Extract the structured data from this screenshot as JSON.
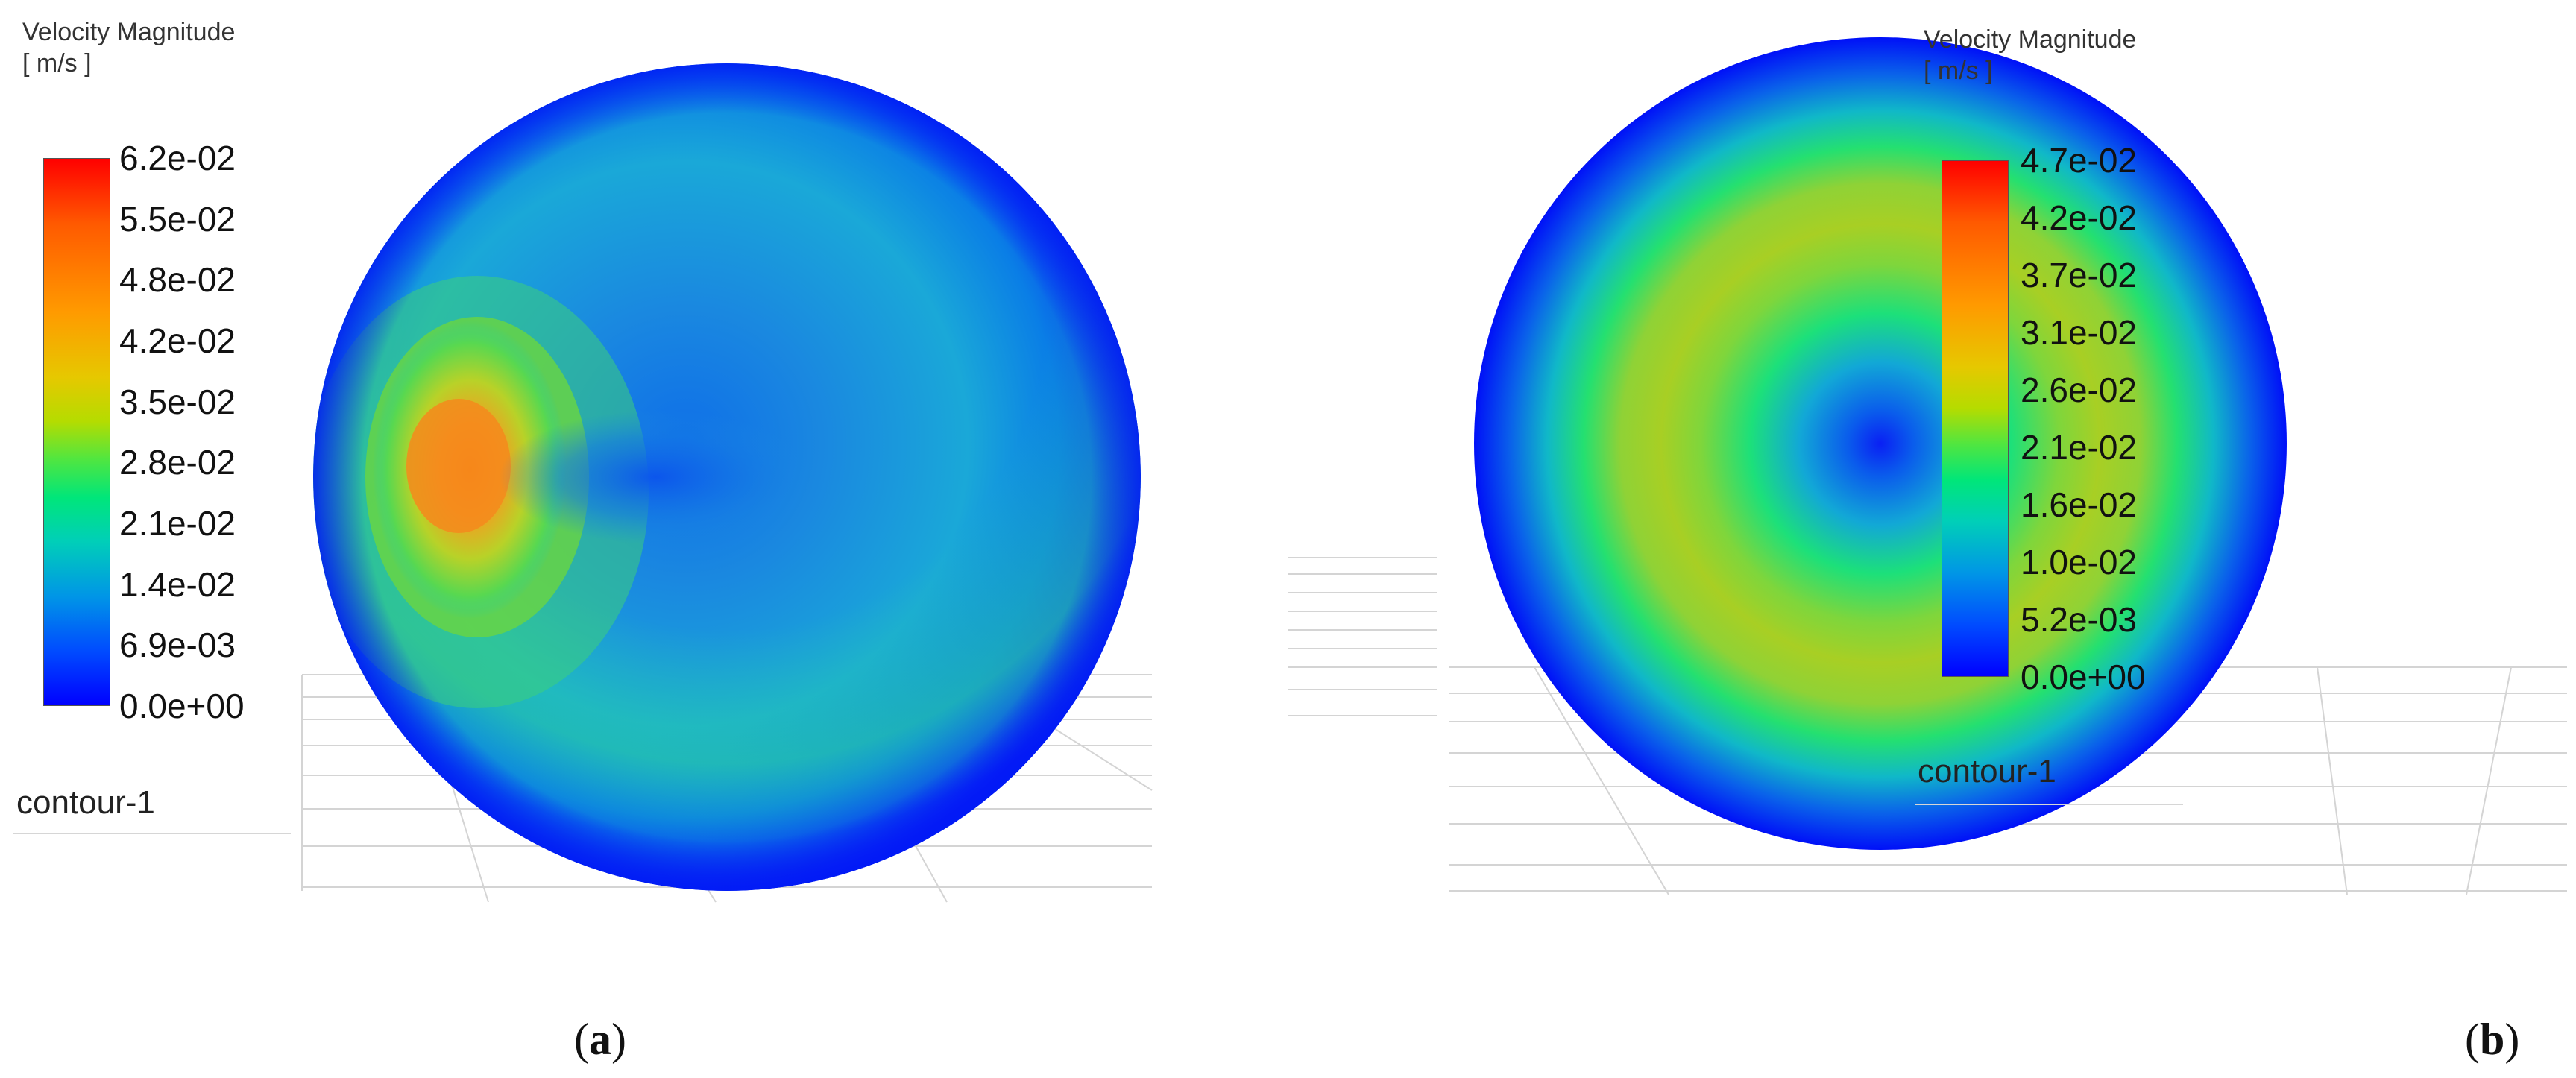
{
  "panels": [
    {
      "id": "a",
      "legend": {
        "title_line1": "Velocity Magnitude",
        "title_line2": "[ m/s ]",
        "ticks": [
          "6.2e-02",
          "5.5e-02",
          "4.8e-02",
          "4.2e-02",
          "3.5e-02",
          "2.8e-02",
          "2.1e-02",
          "1.4e-02",
          "6.9e-03",
          "0.0e+00"
        ]
      },
      "contour_name": "contour-1",
      "caption_open": "(",
      "caption_letter": "a",
      "caption_close": ")"
    },
    {
      "id": "b",
      "legend": {
        "title_line1": "Velocity Magnitude",
        "title_line2": "[ m/s ]",
        "ticks": [
          "4.7e-02",
          "4.2e-02",
          "3.7e-02",
          "3.1e-02",
          "2.6e-02",
          "2.1e-02",
          "1.6e-02",
          "1.0e-02",
          "5.2e-03",
          "0.0e+00"
        ]
      },
      "contour_name": "contour-1",
      "caption_open": "(",
      "caption_letter": "b",
      "caption_close": ")"
    }
  ],
  "colors": {
    "max": "#ff0000",
    "high": "#ff9a00",
    "mid": "#b5dc00",
    "midlow": "#00e67a",
    "low": "#0096e6",
    "min": "#0000ff"
  }
}
